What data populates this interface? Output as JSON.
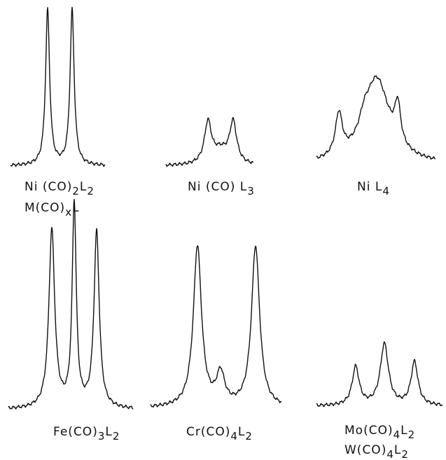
{
  "panels": [
    {
      "labels": [
        [
          "Ni (CO)",
          "2",
          "L",
          "2"
        ],
        [
          "M(CO)",
          "x",
          "L"
        ]
      ]
    },
    {
      "labels": [
        [
          "Ni (CO) L",
          "3"
        ]
      ]
    },
    {
      "labels": [
        [
          "Ni L",
          "4"
        ]
      ]
    },
    {
      "labels": [
        [
          "Fe(CO)",
          "3",
          "L",
          "2"
        ]
      ]
    },
    {
      "labels": [
        [
          "Cr(CO)",
          "4",
          "L",
          "2"
        ]
      ]
    },
    {
      "labels": [
        [
          "Mo(CO)",
          "4",
          "L",
          "2"
        ],
        [
          "W(CO)",
          "4",
          "L",
          "2"
        ]
      ]
    }
  ]
}
